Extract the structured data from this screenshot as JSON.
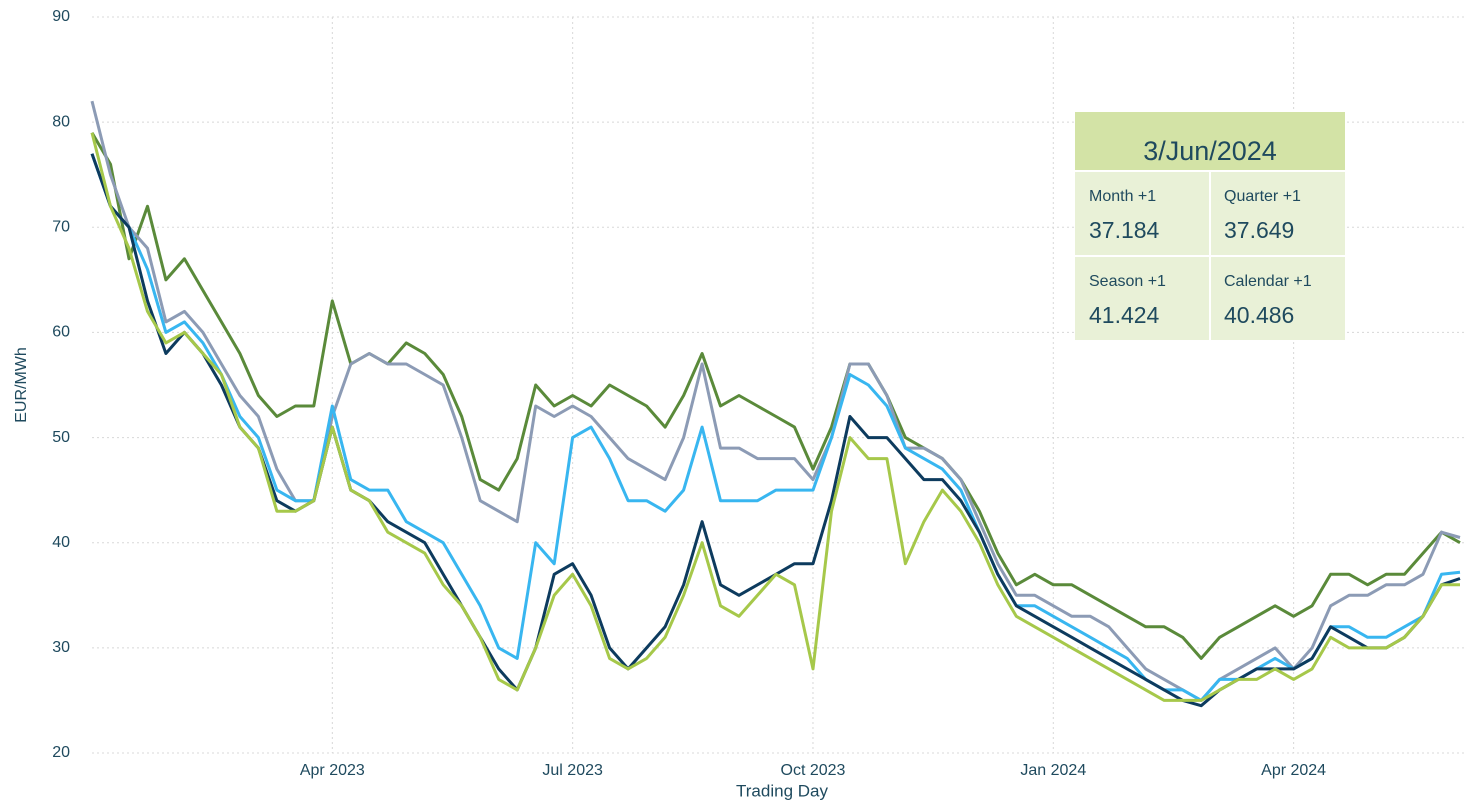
{
  "chart_data": {
    "type": "line",
    "ylabel": "EUR/MWh",
    "xlabel": "Trading Day",
    "categories": [
      null,
      null,
      null,
      null,
      null,
      null,
      null,
      null,
      null,
      null,
      null,
      null,
      null,
      "Apr 2023",
      null,
      null,
      null,
      null,
      null,
      null,
      null,
      null,
      null,
      null,
      null,
      null,
      "Jul 2023",
      null,
      null,
      null,
      null,
      null,
      null,
      null,
      null,
      null,
      null,
      null,
      null,
      "Oct 2023",
      null,
      null,
      null,
      null,
      null,
      null,
      null,
      null,
      null,
      null,
      null,
      null,
      "Jan 2024",
      null,
      null,
      null,
      null,
      null,
      null,
      null,
      null,
      null,
      null,
      null,
      null,
      "Apr 2024",
      null,
      null,
      null,
      null,
      null,
      null,
      null,
      null,
      null
    ],
    "series": [
      {
        "color": "#5a8a3a",
        "values": [
          79,
          76,
          67,
          72,
          65,
          67,
          64,
          61,
          58,
          54,
          52,
          53,
          53,
          63,
          57,
          58,
          57,
          59,
          58,
          56,
          52,
          46,
          45,
          48,
          55,
          53,
          54,
          53,
          55,
          54,
          53,
          51,
          54,
          58,
          53,
          54,
          53,
          52,
          51,
          47,
          51,
          57,
          57,
          54,
          50,
          49,
          48,
          46,
          43,
          39,
          36,
          37,
          36,
          36,
          35,
          34,
          33,
          32,
          32,
          31,
          29,
          31,
          32,
          33,
          34,
          33,
          34,
          37,
          37,
          36,
          37,
          37,
          39,
          41,
          40
        ]
      },
      {
        "color": "#8c9bb5",
        "values": [
          82,
          75,
          70,
          68,
          61,
          62,
          60,
          57,
          54,
          52,
          47,
          44,
          44,
          52,
          57,
          58,
          57,
          57,
          56,
          55,
          50,
          44,
          43,
          42,
          53,
          52,
          53,
          52,
          50,
          48,
          47,
          46,
          50,
          57,
          49,
          49,
          48,
          48,
          48,
          46,
          50,
          57,
          57,
          54,
          49,
          49,
          48,
          46,
          42,
          38,
          35,
          35,
          34,
          33,
          33,
          32,
          30,
          28,
          27,
          26,
          25,
          27,
          28,
          29,
          30,
          28,
          30,
          34,
          35,
          35,
          36,
          36,
          37,
          41,
          40.5
        ]
      },
      {
        "color": "#38b6f0",
        "values": [
          77,
          72,
          70,
          66,
          60,
          61,
          59,
          56,
          52,
          50,
          45,
          44,
          44,
          53,
          46,
          45,
          45,
          42,
          41,
          40,
          37,
          34,
          30,
          29,
          40,
          38,
          50,
          51,
          48,
          44,
          44,
          43,
          45,
          51,
          44,
          44,
          44,
          45,
          45,
          45,
          50,
          56,
          55,
          53,
          49,
          48,
          47,
          45,
          41,
          37,
          34,
          34,
          33,
          32,
          31,
          30,
          29,
          27,
          26,
          26,
          25,
          27,
          27,
          28,
          29,
          28,
          29,
          32,
          32,
          31,
          31,
          32,
          33,
          37,
          37.2
        ]
      },
      {
        "color": "#0d3b5e",
        "values": [
          77,
          72,
          70,
          63,
          58,
          60,
          58,
          55,
          51,
          49,
          44,
          43,
          44,
          51,
          45,
          44,
          42,
          41,
          40,
          37,
          34,
          31,
          28,
          26,
          30,
          37,
          38,
          35,
          30,
          28,
          30,
          32,
          36,
          42,
          36,
          35,
          36,
          37,
          38,
          38,
          44,
          52,
          50,
          50,
          48,
          46,
          46,
          44,
          41,
          37,
          34,
          33,
          32,
          31,
          30,
          29,
          28,
          27,
          26,
          25,
          24.5,
          26,
          27,
          28,
          28,
          28,
          29,
          32,
          31,
          30,
          30,
          31,
          33,
          36,
          36.6
        ]
      },
      {
        "color": "#a6c84a",
        "values": [
          79,
          72,
          68,
          62,
          59,
          60,
          58,
          56,
          51,
          49,
          43,
          43,
          44,
          51,
          45,
          44,
          41,
          40,
          39,
          36,
          34,
          31,
          27,
          26,
          30,
          35,
          37,
          34,
          29,
          28,
          29,
          31,
          35,
          40,
          34,
          33,
          35,
          37,
          36,
          28,
          43,
          50,
          48,
          48,
          38,
          42,
          45,
          43,
          40,
          36,
          33,
          32,
          31,
          30,
          29,
          28,
          27,
          26,
          25,
          25,
          25,
          26,
          27,
          27,
          28,
          27,
          28,
          31,
          30,
          30,
          30,
          31,
          33,
          36,
          36
        ]
      }
    ],
    "ylim": [
      20,
      90
    ],
    "yticks": [
      20,
      30,
      40,
      50,
      60,
      70,
      80,
      90
    ],
    "grid": true,
    "panel": {
      "date": "3/Jun/2024",
      "cells": [
        {
          "label": "Month +1",
          "value": "37.184"
        },
        {
          "label": "Quarter +1",
          "value": "37.649"
        },
        {
          "label": "Season +1",
          "value": "41.424"
        },
        {
          "label": "Calendar +1",
          "value": "40.486"
        }
      ]
    }
  }
}
